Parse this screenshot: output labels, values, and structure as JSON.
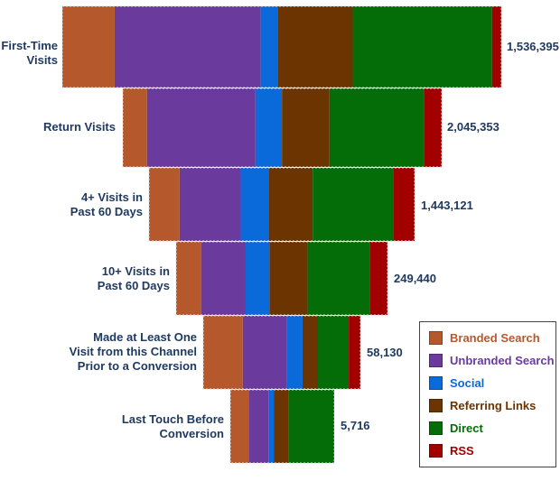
{
  "chart_data": {
    "type": "bar",
    "subtype": "stacked-horizontal-funnel",
    "categories": [
      "First-Time\nVisits",
      "Return Visits",
      "4+ Visits in\nPast 60 Days",
      "10+ Visits in\nPast 60 Days",
      "Made at Least One\nVisit from this Channel\nPrior to a Conversion",
      "Last Touch Before\nConversion"
    ],
    "totals": [
      "1,536,395",
      "2,045,353",
      "1,443,121",
      "249,440",
      "58,130",
      "5,716"
    ],
    "series": [
      {
        "name": "Branded Search",
        "color": "#b5582b",
        "values": [
          12.4,
          7.6,
          10.4,
          10.9,
          27.2,
          16.0
        ]
      },
      {
        "name": "Unbranded Search",
        "color": "#6a3a9d",
        "values": [
          34.6,
          34.0,
          20.8,
          19.4,
          30.5,
          17.3
        ]
      },
      {
        "name": "Social",
        "color": "#0a6ad9",
        "values": [
          4.0,
          8.3,
          9.5,
          10.4,
          10.6,
          4.9
        ]
      },
      {
        "name": "Referring Links",
        "color": "#6b3400",
        "values": [
          17.8,
          14.9,
          15.0,
          16.6,
          10.6,
          12.3
        ]
      },
      {
        "name": "Direct",
        "color": "#056d07",
        "values": [
          33.0,
          29.8,
          27.5,
          27.0,
          21.2,
          40.1
        ]
      },
      {
        "name": "RSS",
        "color": "#a20000",
        "values": [
          2.2,
          5.4,
          7.2,
          7.8,
          8.0,
          0
        ]
      }
    ],
    "xlabel": "",
    "ylabel": "",
    "legend": {
      "position": "bottom-right",
      "entries": [
        "Branded Search",
        "Unbranded Search",
        "Social",
        "Referring Links",
        "Direct",
        "RSS"
      ]
    },
    "grid": false
  }
}
